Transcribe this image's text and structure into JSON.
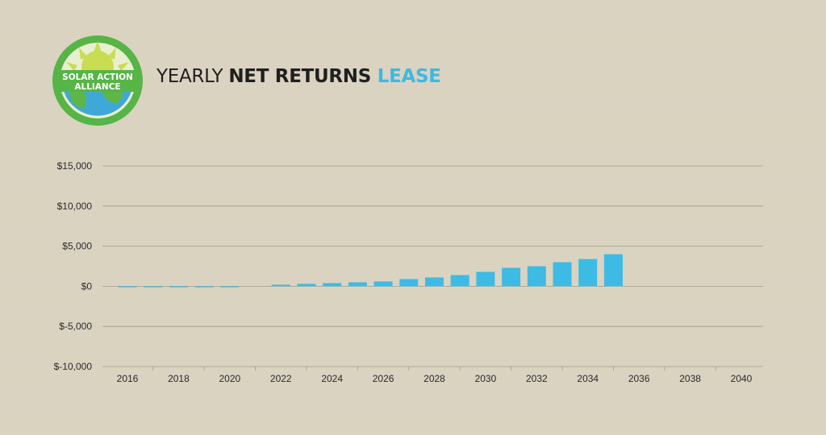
{
  "brand": {
    "logo_line1": "SOLAR ACTION",
    "logo_line2": "ALLIANCE",
    "logo_green": "#57b446",
    "logo_sun": "#c9dc52",
    "logo_globe": "#3ea9d8"
  },
  "header": {
    "title_part1": "YEARLY ",
    "title_part2": "NET RETURNS",
    "title_part3": " LEASE",
    "accent_color": "#3db8e4"
  },
  "chart_data": {
    "type": "bar",
    "title": "YEARLY NET RETURNS LEASE",
    "xlabel": "",
    "ylabel": "",
    "ylim": [
      -10000,
      15000
    ],
    "y_ticks": [
      15000,
      10000,
      5000,
      0,
      -5000,
      -10000
    ],
    "y_tick_labels": [
      "$15,000",
      "$10,000",
      "$5,000",
      "$0",
      "$-5,000",
      "$-10,000"
    ],
    "x_tick_labels": [
      "2016",
      "2018",
      "2020",
      "2022",
      "2024",
      "2026",
      "2028",
      "2030",
      "2032",
      "2034",
      "2036",
      "2038",
      "2040"
    ],
    "categories": [
      2016,
      2017,
      2018,
      2019,
      2020,
      2021,
      2022,
      2023,
      2024,
      2025,
      2026,
      2027,
      2028,
      2029,
      2030,
      2031,
      2032,
      2033,
      2034,
      2035,
      2036,
      2037,
      2038,
      2039,
      2040
    ],
    "values": [
      -50,
      -100,
      -100,
      -100,
      -100,
      0,
      200,
      300,
      400,
      500,
      600,
      900,
      1100,
      1400,
      1800,
      2300,
      2500,
      3000,
      3400,
      4000,
      0,
      0,
      0,
      0,
      0
    ],
    "bar_color": "#3dbbe5",
    "gridlines": true,
    "legend": "none"
  }
}
